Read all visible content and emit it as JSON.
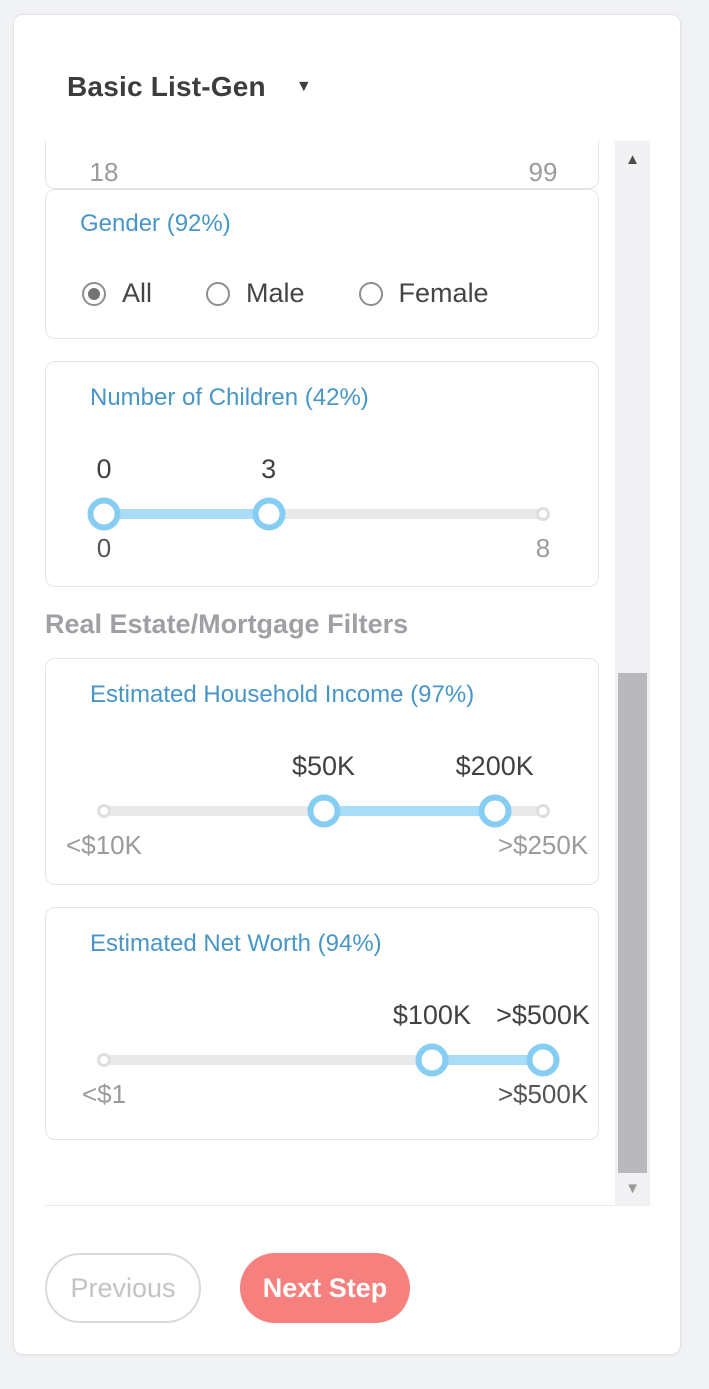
{
  "header": {
    "title": "Basic List-Gen"
  },
  "icons": {
    "dropdown": "▼",
    "scroll_up": "▲",
    "scroll_down": "▼"
  },
  "colors": {
    "accent_blue": "#4796c7",
    "slider_blue_handle": "#86cdf3",
    "slider_blue_fill": "#a8dcf7",
    "slider_track_gray": "#e9e9ea",
    "coral_button": "#f5807e",
    "muted_text": "#9b9b9b",
    "dark_text": "#3d3d3d",
    "page_background": "#f1f2f4"
  },
  "filters": {
    "age": {
      "min": "18",
      "max": "99"
    },
    "gender": {
      "title": "Gender (92%)",
      "options": [
        {
          "label": "All",
          "state": "selected"
        },
        {
          "label": "Male",
          "state": "unselected"
        },
        {
          "label": "Female",
          "state": "unselected"
        }
      ]
    },
    "children": {
      "title": "Number of Children (42%)",
      "lower": "0",
      "upper": "3",
      "lower_pct": 0,
      "upper_pct": 37.5,
      "fill_pct": 37.5,
      "min": "0",
      "max": "8",
      "min_state": "active",
      "max_state": "muted"
    },
    "section_header": "Real Estate/Mortgage Filters",
    "income": {
      "title": "Estimated Household Income (97%)",
      "lower": "$50K",
      "upper": "$200K",
      "lower_pct": 50,
      "upper_pct": 89,
      "fill_pct": 39,
      "min": "<$10K",
      "max": ">$250K",
      "min_state": "muted",
      "max_state": "muted"
    },
    "networth": {
      "title": "Estimated Net Worth (94%)",
      "lower": "$100K",
      "upper": ">$500K",
      "lower_pct": 74.7,
      "upper_pct": 100,
      "fill_pct": 25.3,
      "min": "<$1",
      "max": ">$500K",
      "min_state": "muted",
      "max_state": "active"
    }
  },
  "footer": {
    "previous_label": "Previous",
    "next_label": "Next Step"
  }
}
